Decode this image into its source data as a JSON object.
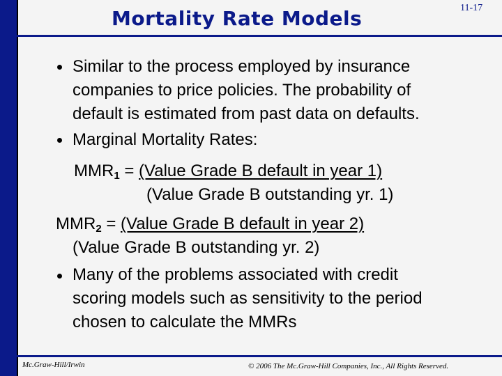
{
  "slide": {
    "title": "Mortality Rate Models",
    "number": "11-17",
    "bullet1": [
      "Similar to the process employed by insurance",
      "companies to price policies. The probability of",
      "default is estimated from past data on defaults."
    ],
    "bullet2": "Marginal Mortality Rates:",
    "mmr1": {
      "label": "MMR",
      "sub": "1",
      "equals": " = ",
      "numerator": "(Value Grade B default in year 1)",
      "denominator": "(Value Grade B outstanding yr. 1)"
    },
    "mmr2": {
      "label": "MMR",
      "sub": "2",
      "equals": " = ",
      "numerator": "(Value Grade B default in year 2)",
      "denominator": "(Value Grade B outstanding yr. 2)"
    },
    "bullet3": [
      "Many of the problems associated with credit",
      "scoring models such as sensitivity to the period",
      "chosen to calculate the MMRs"
    ]
  },
  "footer": {
    "left": "Mc.Graw-Hill/Irwin",
    "right": "© 2006 The Mc.Graw-Hill Companies, Inc., All Rights Reserved."
  },
  "colors": {
    "accent": "#0b1a8a",
    "text": "#000000",
    "background": "#f4f4f4"
  }
}
